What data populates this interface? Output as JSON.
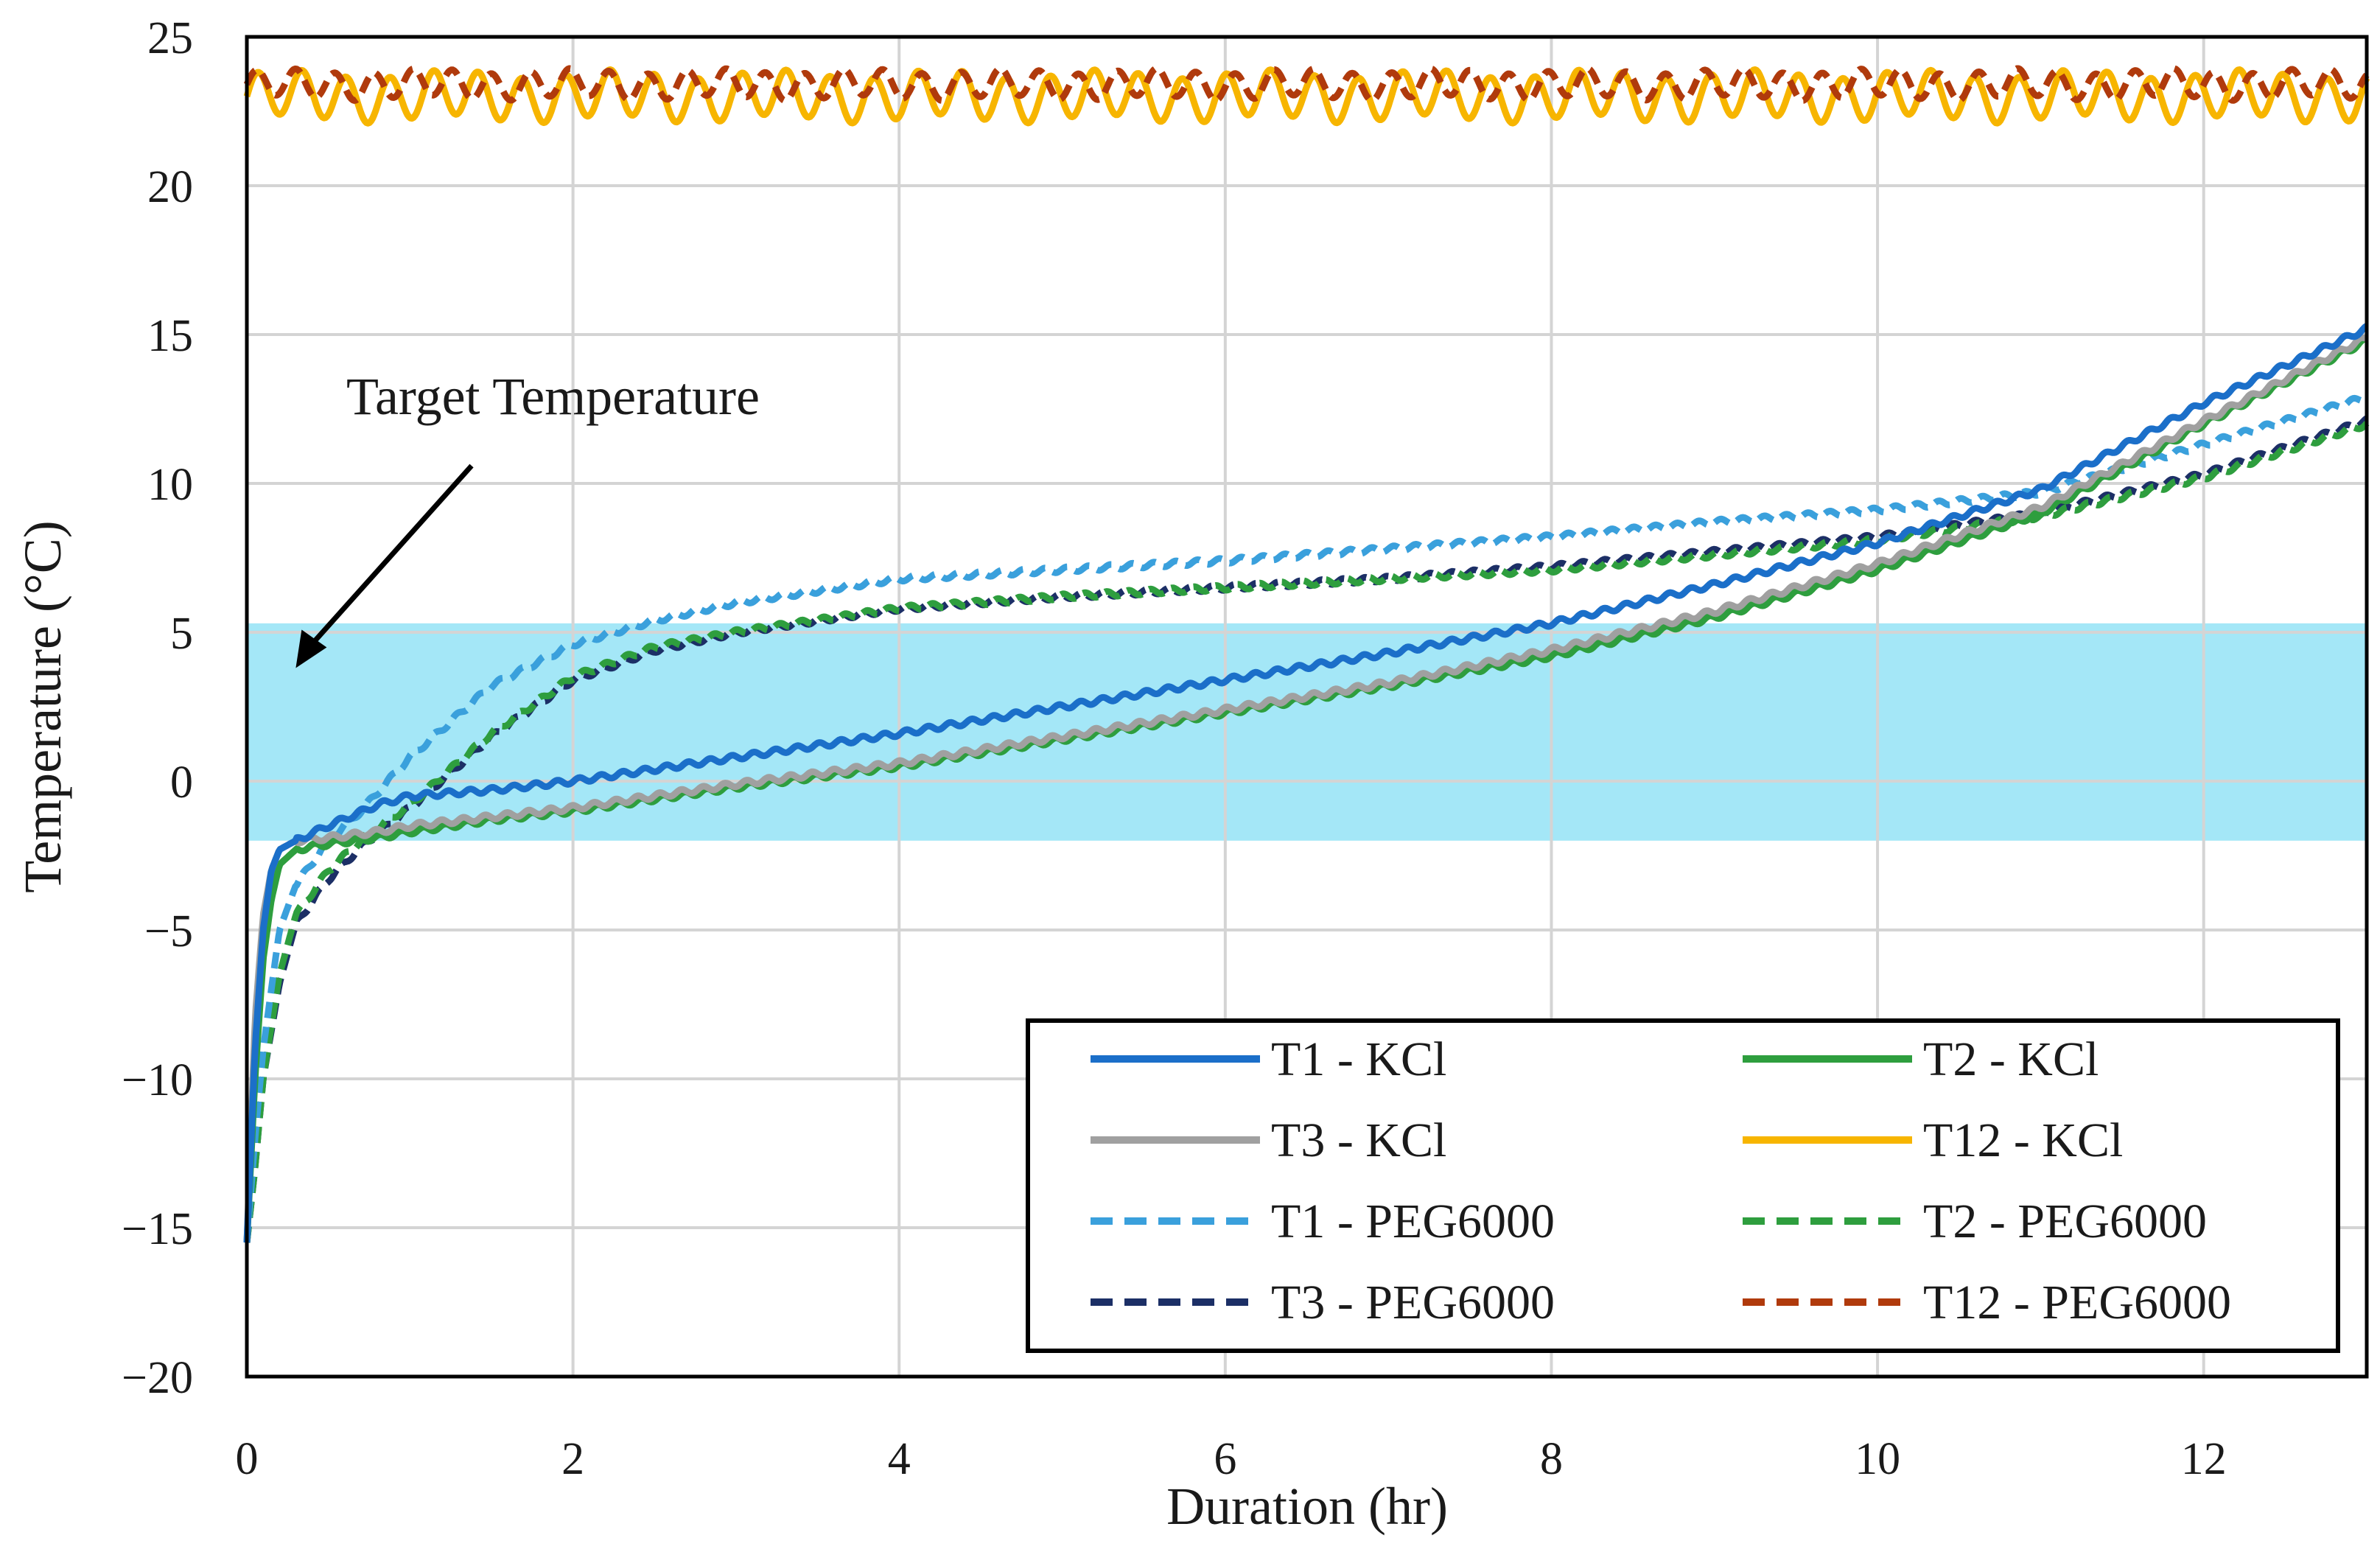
{
  "chart_data": {
    "type": "line",
    "title": "",
    "xlabel": "Duration (hr)",
    "ylabel": "Temperature (°C)",
    "xlim": [
      0,
      13
    ],
    "ylim": [
      -20,
      25
    ],
    "xticks": [
      0,
      2,
      4,
      6,
      8,
      10,
      12
    ],
    "yticks": [
      -20,
      -15,
      -10,
      -5,
      0,
      5,
      10,
      15,
      20,
      25
    ],
    "xtick_labels": [
      "0",
      "2",
      "4",
      "6",
      "8",
      "10",
      "12"
    ],
    "ytick_labels": [
      "−20",
      "−15",
      "−10",
      "−5",
      "0",
      "5",
      "10",
      "15",
      "20",
      "25"
    ],
    "grid": true,
    "legend_position": "bottom-right",
    "target_band": {
      "ymin": -2,
      "ymax": 5.3,
      "color": "#9fe6f7"
    },
    "annotation": {
      "text": "Target Temperature",
      "points_to": {
        "x": 0.3,
        "y": 3.8
      }
    },
    "series": [
      {
        "name": "T1 - KCl",
        "color": "#1b6fc9",
        "dash": "solid",
        "x": [
          0,
          0.05,
          0.1,
          0.15,
          0.2,
          0.3,
          0.5,
          0.8,
          1,
          1.5,
          2,
          3,
          4,
          5,
          6,
          7,
          8,
          9,
          10,
          11,
          12,
          13
        ],
        "y": [
          -15.5,
          -9,
          -5,
          -3,
          -2.3,
          -2.0,
          -1.5,
          -0.8,
          -0.5,
          -0.3,
          0.0,
          0.8,
          1.6,
          2.5,
          3.4,
          4.3,
          5.3,
          6.6,
          8.0,
          9.8,
          12.7,
          15.2
        ]
      },
      {
        "name": "T2 - KCl",
        "color": "#2e9e3e",
        "dash": "solid",
        "x": [
          0,
          0.05,
          0.1,
          0.15,
          0.2,
          0.3,
          0.5,
          0.8,
          1,
          1.5,
          2,
          3,
          4,
          5,
          6,
          7,
          8,
          9,
          10,
          11,
          12,
          13
        ],
        "y": [
          -15.5,
          -10,
          -6,
          -4,
          -2.8,
          -2.3,
          -2.1,
          -1.9,
          -1.7,
          -1.3,
          -1.0,
          -0.2,
          0.5,
          1.4,
          2.3,
          3.2,
          4.2,
          5.5,
          7.1,
          9.0,
          12.0,
          14.8
        ]
      },
      {
        "name": "T3 - KCl",
        "color": "#a0a0a0",
        "dash": "solid",
        "x": [
          0,
          0.05,
          0.1,
          0.15,
          0.2,
          0.3,
          0.5,
          0.8,
          1,
          1.5,
          2,
          3,
          4,
          5,
          6,
          7,
          8,
          9,
          10,
          11,
          12,
          13
        ],
        "y": [
          -15.5,
          -8,
          -4.5,
          -3,
          -2.3,
          -2.0,
          -1.9,
          -1.7,
          -1.5,
          -1.2,
          -0.9,
          -0.1,
          0.6,
          1.5,
          2.4,
          3.3,
          4.4,
          5.7,
          7.3,
          9.2,
          12.1,
          14.9
        ]
      },
      {
        "name": "T12 - KCl",
        "color": "#f7b500",
        "dash": "solid",
        "x": [
          0,
          13
        ],
        "y": [
          23.0,
          23.0
        ],
        "oscillation": {
          "amplitude": 0.75,
          "period": 0.27
        }
      },
      {
        "name": "T1 - PEG6000",
        "color": "#3aa0dc",
        "dash": "dashed",
        "x": [
          0,
          0.05,
          0.1,
          0.2,
          0.3,
          0.5,
          0.7,
          1,
          1.5,
          2,
          2.5,
          3,
          4,
          5,
          6,
          7,
          8,
          9,
          9.5,
          10,
          11,
          12,
          13
        ],
        "y": [
          -15.5,
          -12,
          -9,
          -5,
          -3.5,
          -2.0,
          -1.0,
          0.8,
          3.2,
          4.6,
          5.4,
          6.0,
          6.8,
          7.1,
          7.4,
          7.8,
          8.2,
          8.7,
          8.9,
          9.1,
          9.7,
          11.3,
          12.9
        ]
      },
      {
        "name": "T2 - PEG6000",
        "color": "#2e9e3e",
        "dash": "dashed",
        "x": [
          0,
          0.05,
          0.1,
          0.2,
          0.3,
          0.5,
          0.7,
          1,
          1.5,
          2,
          2.5,
          3,
          4,
          5,
          6,
          7,
          8,
          9,
          10,
          11,
          12,
          13
        ],
        "y": [
          -15.5,
          -13,
          -10,
          -6.5,
          -4.5,
          -3.0,
          -2.0,
          -0.8,
          1.6,
          3.5,
          4.5,
          5.0,
          5.8,
          6.2,
          6.5,
          6.8,
          7.1,
          7.6,
          8.1,
          8.9,
          10.2,
          12.0
        ]
      },
      {
        "name": "T3 - PEG6000",
        "color": "#1c2f66",
        "dash": "dashed",
        "x": [
          0,
          0.05,
          0.1,
          0.2,
          0.3,
          0.5,
          0.7,
          1,
          1.5,
          2,
          2.5,
          3,
          4,
          5,
          6,
          7,
          8,
          9,
          10,
          11,
          12,
          13
        ],
        "y": [
          -15.5,
          -13,
          -10,
          -6.8,
          -4.8,
          -3.3,
          -2.2,
          -0.9,
          1.5,
          3.4,
          4.4,
          5.0,
          5.8,
          6.2,
          6.5,
          6.8,
          7.2,
          7.7,
          8.2,
          9.0,
          10.3,
          12.1
        ]
      },
      {
        "name": "T12 - PEG6000",
        "color": "#b03a0c",
        "dash": "dashed",
        "x": [
          0,
          13
        ],
        "y": [
          23.4,
          23.4
        ],
        "oscillation": {
          "amplitude": 0.45,
          "period": 0.24
        }
      }
    ]
  }
}
